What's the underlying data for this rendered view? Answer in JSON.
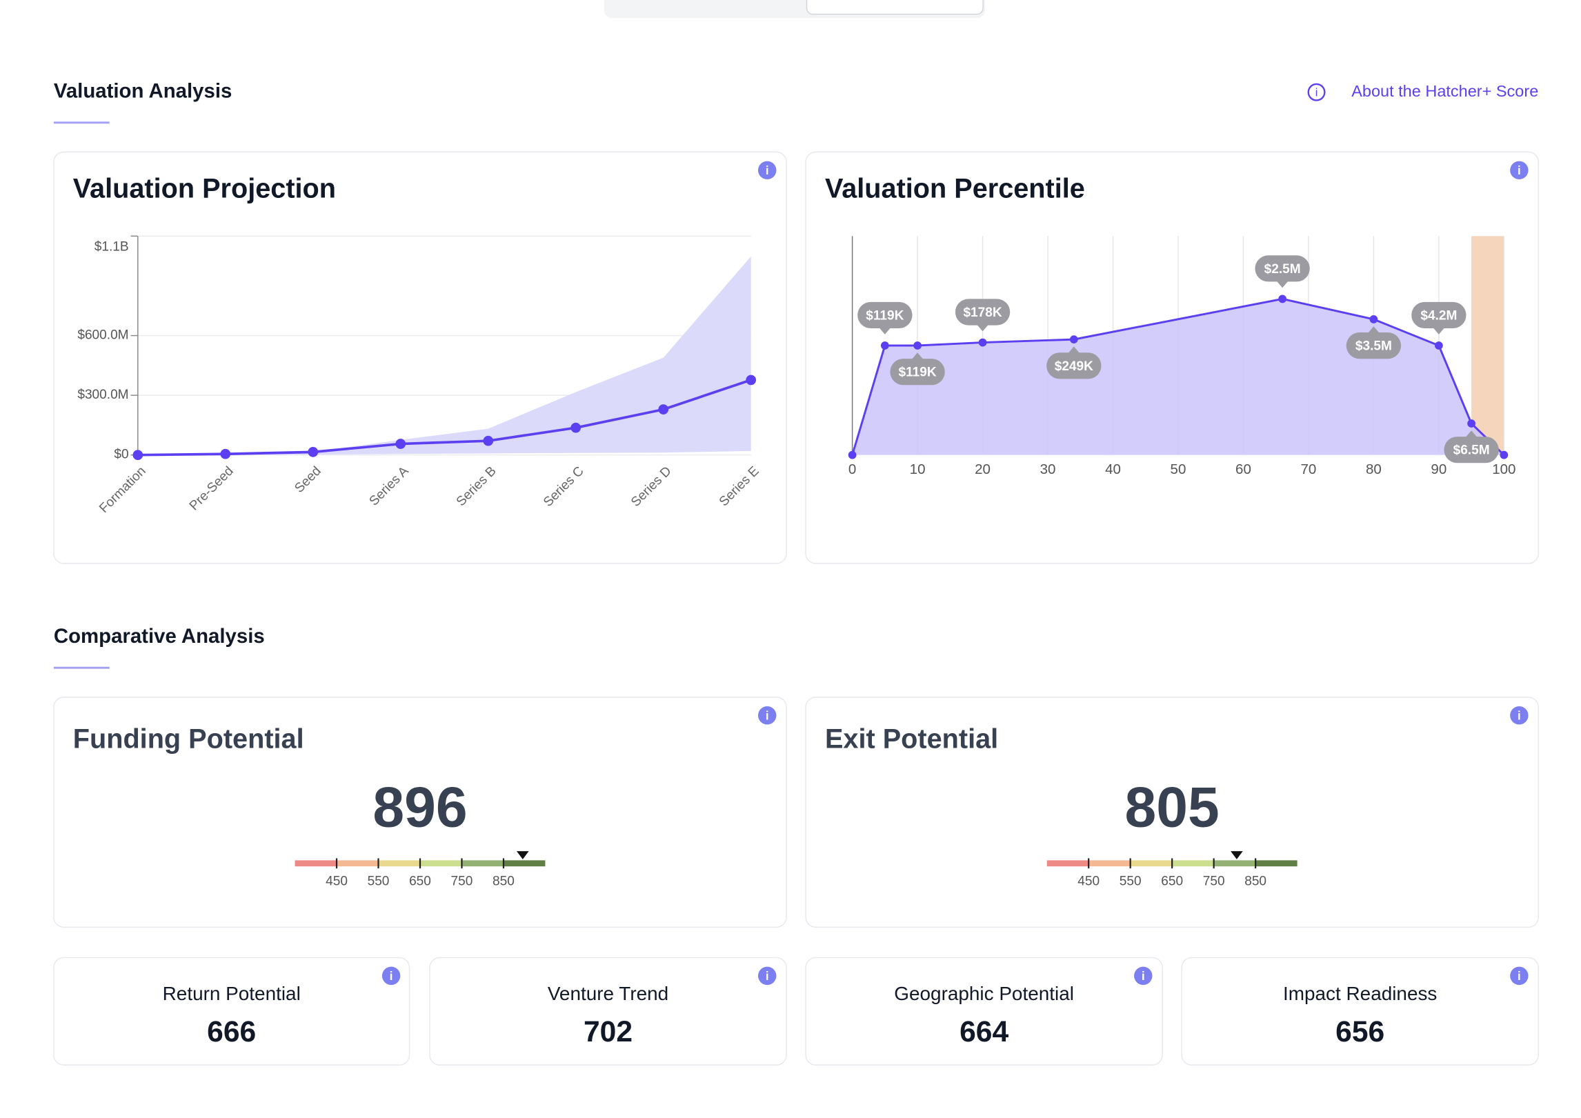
{
  "valuation_analysis": {
    "title": "Valuation Analysis",
    "link": "About the Hatcher+ Score"
  },
  "chart_data": [
    {
      "type": "band",
      "title": "Valuation Projection",
      "categories": [
        "Formation",
        "Pre-Seed",
        "Seed",
        "Series A",
        "Series B",
        "Series C",
        "Series D",
        "Series E"
      ],
      "values": [
        0,
        5000000,
        15000000,
        56000000,
        71000000,
        137000000,
        229000000,
        377000000
      ],
      "upper": [
        0,
        5000000,
        15000000,
        76000000,
        132000000,
        316000000,
        489000000,
        998000000
      ],
      "lower": [
        0,
        0,
        2000000,
        5000000,
        8000000,
        10000000,
        12000000,
        20000000
      ],
      "color": "#5b3ff0",
      "band_color": "#dcdafb",
      "ylim": [
        0,
        1100000000
      ],
      "yticks": [
        {
          "value": 0,
          "label": "$0"
        },
        {
          "value": 300000000,
          "label": "$300.0M"
        },
        {
          "value": 600000000,
          "label": "$600.0M"
        },
        {
          "value": 1100000000,
          "label": "$1.1B"
        }
      ],
      "grid": true
    },
    {
      "type": "area",
      "title": "Valuation Percentile",
      "x": [
        0,
        5,
        10,
        20,
        34,
        66,
        80,
        90,
        95,
        100
      ],
      "values": [
        0,
        50,
        50,
        51.4,
        52.8,
        71.3,
        62,
        50,
        14.4,
        0
      ],
      "point_labels": [
        null,
        "$119K",
        "$119K",
        "$178K",
        "$249K",
        "$2.5M",
        "$3.5M",
        "$4.2M",
        "$6.5M",
        null
      ],
      "xlim": [
        0,
        100
      ],
      "xticks": [
        0,
        10,
        20,
        30,
        40,
        50,
        60,
        70,
        80,
        90,
        100
      ],
      "ylim": [
        0,
        100
      ],
      "highlight": {
        "range": [
          95,
          100
        ],
        "color": "#f6d5bd"
      },
      "color": "#5b3ff0",
      "fill_color": "#cbc4fb",
      "grid": true
    }
  ],
  "comparative_analysis": {
    "title": "Comparative Analysis"
  },
  "gauges": [
    {
      "title": "Funding Potential",
      "score": 896
    },
    {
      "title": "Exit Potential",
      "score": 805
    }
  ],
  "gauge_scale": {
    "range": [
      350,
      950
    ],
    "ticks": [
      450,
      550,
      650,
      750,
      850
    ],
    "colors": [
      "#ee8a86",
      "#f4b993",
      "#e9d98e",
      "#cbdf8f",
      "#93b173",
      "#5f7f45"
    ]
  },
  "metrics": [
    {
      "title": "Return Potential",
      "value": 666
    },
    {
      "title": "Venture Trend",
      "value": 702
    },
    {
      "title": "Geographic Potential",
      "value": 664
    },
    {
      "title": "Impact Readiness",
      "value": 656
    }
  ]
}
